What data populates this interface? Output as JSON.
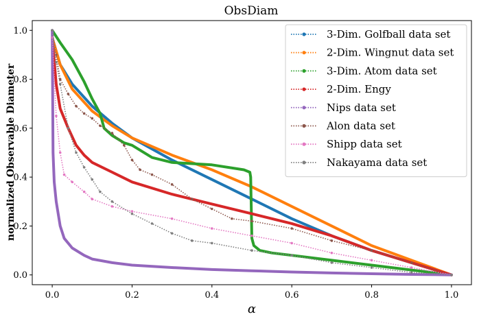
{
  "chart_data": {
    "type": "line",
    "title": "ObsDiam",
    "xlabel": "α",
    "ylabel": "normalized Observable Diameter",
    "xlim": [
      -0.05,
      1.05
    ],
    "ylim": [
      -0.04,
      1.04
    ],
    "xticks": [
      0.0,
      0.2,
      0.4,
      0.6,
      0.8,
      1.0
    ],
    "yticks": [
      0.0,
      0.2,
      0.4,
      0.6,
      0.8,
      1.0
    ],
    "xtick_labels": [
      "0.0",
      "0.2",
      "0.4",
      "0.6",
      "0.8",
      "1.0"
    ],
    "ytick_labels": [
      "0.0",
      "0.2",
      "0.4",
      "0.6",
      "0.8",
      "1.0"
    ],
    "grid": false,
    "legend_position": "top-right",
    "series": [
      {
        "name": "3-Dim. Golfball data set",
        "color": "#1f77b4",
        "style": "thick",
        "x": [
          0,
          0.02,
          0.05,
          0.1,
          0.15,
          0.2,
          0.3,
          0.4,
          0.5,
          0.6,
          0.7,
          0.8,
          0.9,
          1.0
        ],
        "y": [
          0.97,
          0.86,
          0.78,
          0.69,
          0.62,
          0.56,
          0.47,
          0.39,
          0.31,
          0.23,
          0.16,
          0.1,
          0.05,
          0.0
        ]
      },
      {
        "name": "2-Dim. Wingnut data set",
        "color": "#ff7f0e",
        "style": "thick",
        "x": [
          0,
          0.02,
          0.05,
          0.1,
          0.15,
          0.2,
          0.3,
          0.4,
          0.5,
          0.6,
          0.7,
          0.8,
          0.9,
          1.0
        ],
        "y": [
          0.97,
          0.86,
          0.76,
          0.67,
          0.61,
          0.56,
          0.49,
          0.43,
          0.36,
          0.28,
          0.2,
          0.12,
          0.06,
          0.0
        ]
      },
      {
        "name": "3-Dim. Atom data set",
        "color": "#2ca02c",
        "style": "thick",
        "x": [
          0,
          0.02,
          0.05,
          0.08,
          0.1,
          0.12,
          0.13,
          0.15,
          0.18,
          0.2,
          0.25,
          0.3,
          0.4,
          0.48,
          0.495,
          0.497,
          0.5,
          0.505,
          0.52,
          0.55,
          0.6,
          0.7,
          0.8,
          0.9,
          1.0
        ],
        "y": [
          1.0,
          0.95,
          0.88,
          0.79,
          0.72,
          0.66,
          0.6,
          0.57,
          0.54,
          0.53,
          0.48,
          0.46,
          0.45,
          0.43,
          0.42,
          0.4,
          0.15,
          0.12,
          0.1,
          0.09,
          0.08,
          0.06,
          0.04,
          0.02,
          0.0
        ]
      },
      {
        "name": "2-Dim. Engy",
        "color": "#d62728",
        "style": "thick",
        "x": [
          0,
          0.01,
          0.02,
          0.04,
          0.06,
          0.08,
          0.1,
          0.15,
          0.2,
          0.3,
          0.4,
          0.5,
          0.6,
          0.7,
          0.8,
          0.9,
          1.0
        ],
        "y": [
          0.97,
          0.78,
          0.68,
          0.6,
          0.53,
          0.49,
          0.46,
          0.42,
          0.38,
          0.33,
          0.29,
          0.25,
          0.21,
          0.16,
          0.1,
          0.05,
          0.0
        ]
      },
      {
        "name": "Nips data set",
        "color": "#9467bd",
        "style": "thick",
        "x": [
          0,
          0.002,
          0.005,
          0.01,
          0.02,
          0.03,
          0.05,
          0.08,
          0.1,
          0.15,
          0.2,
          0.3,
          0.4,
          0.5,
          0.6,
          0.7,
          0.8,
          0.9,
          1.0
        ],
        "y": [
          1.0,
          0.5,
          0.38,
          0.3,
          0.2,
          0.15,
          0.11,
          0.08,
          0.065,
          0.05,
          0.04,
          0.03,
          0.022,
          0.017,
          0.012,
          0.008,
          0.005,
          0.002,
          0.0
        ]
      },
      {
        "name": "Alon data set",
        "color": "#8c564b",
        "style": "dotted",
        "x": [
          0,
          0.01,
          0.02,
          0.04,
          0.06,
          0.08,
          0.1,
          0.12,
          0.15,
          0.18,
          0.2,
          0.22,
          0.25,
          0.3,
          0.35,
          0.4,
          0.45,
          0.5,
          0.6,
          0.7,
          0.8,
          0.9,
          1.0
        ],
        "y": [
          1.0,
          0.9,
          0.8,
          0.74,
          0.69,
          0.66,
          0.64,
          0.61,
          0.58,
          0.53,
          0.47,
          0.43,
          0.41,
          0.37,
          0.31,
          0.27,
          0.23,
          0.22,
          0.19,
          0.14,
          0.1,
          0.05,
          0.0
        ]
      },
      {
        "name": "Shipp data set",
        "color": "#e377c2",
        "style": "dotted",
        "x": [
          0,
          0.01,
          0.02,
          0.03,
          0.05,
          0.08,
          0.1,
          0.15,
          0.2,
          0.3,
          0.4,
          0.5,
          0.6,
          0.7,
          0.8,
          0.9,
          1.0
        ],
        "y": [
          0.97,
          0.65,
          0.5,
          0.41,
          0.38,
          0.34,
          0.31,
          0.28,
          0.26,
          0.23,
          0.19,
          0.16,
          0.13,
          0.09,
          0.06,
          0.03,
          0.0
        ]
      },
      {
        "name": "Nakayama data set",
        "color": "#7f7f7f",
        "style": "dotted",
        "x": [
          0,
          0.01,
          0.02,
          0.04,
          0.06,
          0.08,
          0.1,
          0.12,
          0.15,
          0.2,
          0.25,
          0.3,
          0.35,
          0.4,
          0.5,
          0.6,
          0.7,
          0.8,
          0.9,
          1.0
        ],
        "y": [
          1.0,
          0.87,
          0.78,
          0.6,
          0.5,
          0.44,
          0.39,
          0.34,
          0.3,
          0.25,
          0.21,
          0.17,
          0.14,
          0.13,
          0.1,
          0.08,
          0.05,
          0.03,
          0.01,
          0.0
        ]
      }
    ]
  }
}
